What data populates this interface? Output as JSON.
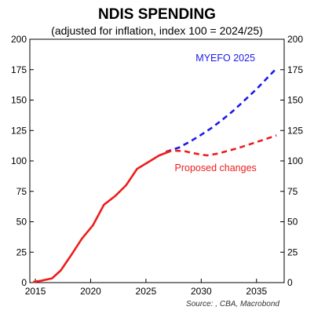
{
  "chart_data": {
    "type": "line",
    "title": "NDIS SPENDING",
    "subtitle": "(adjusted for inflation, index 100 = 2024/25)",
    "source": "Source: , CBA, Macrobond",
    "xlim": [
      2014.5,
      2037.5
    ],
    "ylim": [
      0,
      200
    ],
    "x_ticks": [
      2015,
      2020,
      2025,
      2030,
      2035
    ],
    "y_ticks": [
      0,
      25,
      50,
      75,
      100,
      125,
      150,
      175,
      200
    ],
    "grid": false,
    "colors": {
      "history": "#ee1c1c",
      "myefo": "#1a1aee",
      "proposed": "#ee1c1c"
    },
    "series": [
      {
        "name": "",
        "style": "solid",
        "color_key": "history",
        "points": [
          [
            2014.8,
            0.5
          ],
          [
            2015.5,
            1.5
          ],
          [
            2016.5,
            3.5
          ],
          [
            2017.3,
            10
          ],
          [
            2018.2,
            22
          ],
          [
            2019.2,
            36
          ],
          [
            2020.2,
            47
          ],
          [
            2021.2,
            64
          ],
          [
            2022.2,
            71
          ],
          [
            2023.2,
            80
          ],
          [
            2024.2,
            93.5
          ],
          [
            2025.2,
            99
          ],
          [
            2026.2,
            104.5
          ],
          [
            2027.2,
            108
          ]
        ]
      },
      {
        "name": "MYEFO 2025",
        "style": "dashed",
        "color_key": "myefo",
        "points": [
          [
            2026.8,
            107.5
          ],
          [
            2028,
            111
          ],
          [
            2029,
            116
          ],
          [
            2030,
            121.5
          ],
          [
            2031,
            127.5
          ],
          [
            2032,
            134.5
          ],
          [
            2033,
            142
          ],
          [
            2034,
            150.5
          ],
          [
            2035,
            159
          ],
          [
            2036,
            168.5
          ],
          [
            2036.8,
            176
          ]
        ]
      },
      {
        "name": "Proposed changes",
        "style": "dashed",
        "color_key": "proposed",
        "points": [
          [
            2026.8,
            107.5
          ],
          [
            2027.5,
            108.5
          ],
          [
            2028.5,
            108
          ],
          [
            2029.5,
            106
          ],
          [
            2030.5,
            104.5
          ],
          [
            2031.5,
            106
          ],
          [
            2032.5,
            108.5
          ],
          [
            2033.5,
            111
          ],
          [
            2034.5,
            114
          ],
          [
            2035.5,
            117
          ],
          [
            2036.8,
            121
          ]
        ]
      }
    ],
    "annotations": [
      {
        "text": "MYEFO 2025",
        "x": 2029.5,
        "y": 182,
        "color_key": "myefo"
      },
      {
        "text": "Proposed changes",
        "x": 2027.6,
        "y": 91.5,
        "color_key": "proposed"
      }
    ]
  }
}
